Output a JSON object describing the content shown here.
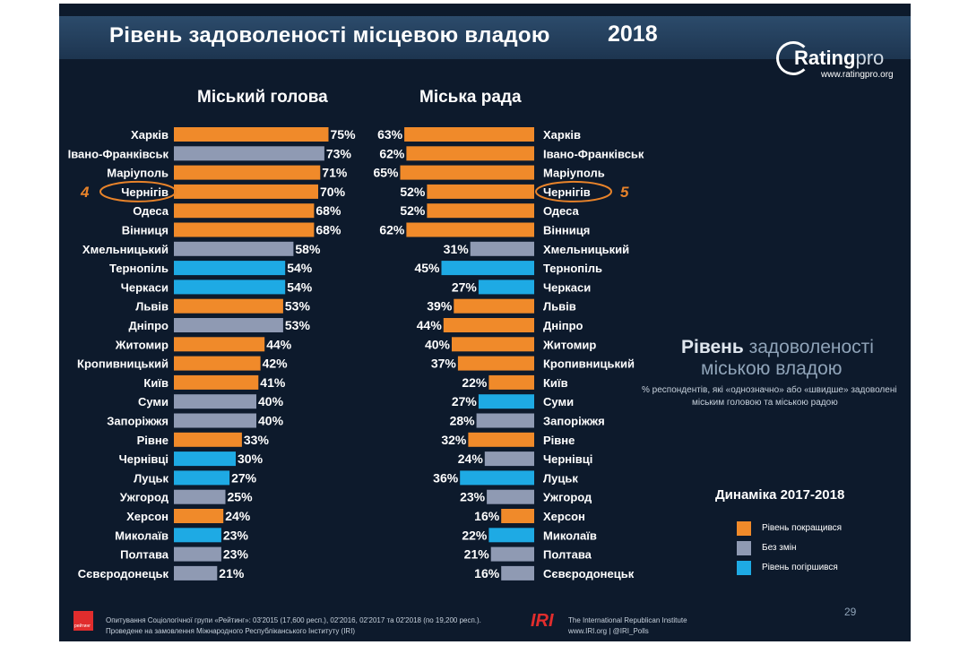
{
  "slide": {
    "title": "Рівень задоволеності місцевою владою",
    "year": "2018",
    "logo_text": "Rating",
    "logo_pro": "pro",
    "logo_url": "www.ratingpro.org"
  },
  "info": {
    "title_bold": "Рівень",
    "title_light": "задоволеності",
    "title_line2": "міською владою",
    "subtitle_line1": "% респондентів, які «однозначно» або «швидше» задоволені",
    "subtitle_line2": "міським головою та міською радою"
  },
  "legend": {
    "title": "Динаміка 2017-2018",
    "items": [
      {
        "label": "Рівень покращився",
        "color": "#f08a2a"
      },
      {
        "label": "Без змін",
        "color": "#8f9ab3"
      },
      {
        "label": "Рівень погіршився",
        "color": "#1eaae4"
      }
    ]
  },
  "footer": {
    "page": "29",
    "logo_small": "рейтинг",
    "line1": "Опитування Соціологічної групи «Рейтинг»: 03'2015 (17,600 респ.), 02'2016, 02'2017 та 02'2018 (по 19,200 респ.).",
    "line2": "Проведене на замовлення Міжнародного Республіканського Інституту (IRI)",
    "iri_logo": "IRI",
    "iri_line1": "The International Republican Institute",
    "iri_line2": "www.IRI.org | @IRI_Polls"
  },
  "colors": {
    "improved": "#f08a2a",
    "unchanged": "#8f9ab3",
    "worse": "#1eaae4",
    "highlight": "#e8832a"
  },
  "chart_data": [
    {
      "type": "bar",
      "title": "Міський голова",
      "categories": [
        "Харків",
        "Івано-Франківськ",
        "Маріуполь",
        "Чернігів",
        "Одеса",
        "Вінниця",
        "Хмельницький",
        "Тернопіль",
        "Черкаси",
        "Львів",
        "Дніпро",
        "Житомир",
        "Кропивницький",
        "Київ",
        "Суми",
        "Запоріжжя",
        "Рівне",
        "Чернівці",
        "Луцьк",
        "Ужгород",
        "Херсон",
        "Миколаїв",
        "Полтава",
        "Сєвєродонецьк"
      ],
      "values": [
        75,
        73,
        71,
        70,
        68,
        68,
        58,
        54,
        54,
        53,
        53,
        44,
        42,
        41,
        40,
        40,
        33,
        30,
        27,
        25,
        24,
        23,
        23,
        21
      ],
      "labels": [
        "75%",
        "73%",
        "71%",
        "70%",
        "68%",
        "68%",
        "58%",
        "54%",
        "54%",
        "53%",
        "53%",
        "44%",
        "42%",
        "41%",
        "40%",
        "40%",
        "33%",
        "30%",
        "27%",
        "25%",
        "24%",
        "23%",
        "23%",
        "21%"
      ],
      "dynamics": [
        "improved",
        "unchanged",
        "improved",
        "improved",
        "improved",
        "improved",
        "unchanged",
        "worse",
        "worse",
        "improved",
        "unchanged",
        "improved",
        "improved",
        "improved",
        "unchanged",
        "unchanged",
        "improved",
        "worse",
        "worse",
        "unchanged",
        "improved",
        "worse",
        "unchanged",
        "unchanged"
      ],
      "highlight": {
        "category": "Чернігів",
        "rank": "4"
      }
    },
    {
      "type": "bar",
      "title": "Міська рада",
      "categories": [
        "Харків",
        "Івано-Франківськ",
        "Маріуполь",
        "Чернігів",
        "Одеса",
        "Вінниця",
        "Хмельницький",
        "Тернопіль",
        "Черкаси",
        "Львів",
        "Дніпро",
        "Житомир",
        "Кропивницький",
        "Київ",
        "Суми",
        "Запоріжжя",
        "Рівне",
        "Чернівці",
        "Луцьк",
        "Ужгород",
        "Херсон",
        "Миколаїв",
        "Полтава",
        "Сєвєродонецьк"
      ],
      "values": [
        63,
        62,
        65,
        52,
        52,
        62,
        31,
        45,
        27,
        39,
        44,
        40,
        37,
        22,
        27,
        28,
        32,
        24,
        36,
        23,
        16,
        22,
        21,
        16
      ],
      "labels": [
        "63%",
        "62%",
        "65%",
        "52%",
        "52%",
        "62%",
        "31%",
        "45%",
        "27%",
        "39%",
        "44%",
        "40%",
        "37%",
        "22%",
        "27%",
        "28%",
        "32%",
        "24%",
        "36%",
        "23%",
        "16%",
        "22%",
        "21%",
        "16%"
      ],
      "dynamics": [
        "improved",
        "improved",
        "improved",
        "improved",
        "improved",
        "improved",
        "unchanged",
        "worse",
        "worse",
        "improved",
        "improved",
        "improved",
        "improved",
        "improved",
        "worse",
        "unchanged",
        "improved",
        "unchanged",
        "worse",
        "unchanged",
        "improved",
        "worse",
        "unchanged",
        "unchanged"
      ],
      "highlight": {
        "category": "Чернігів",
        "rank": "5"
      }
    }
  ]
}
